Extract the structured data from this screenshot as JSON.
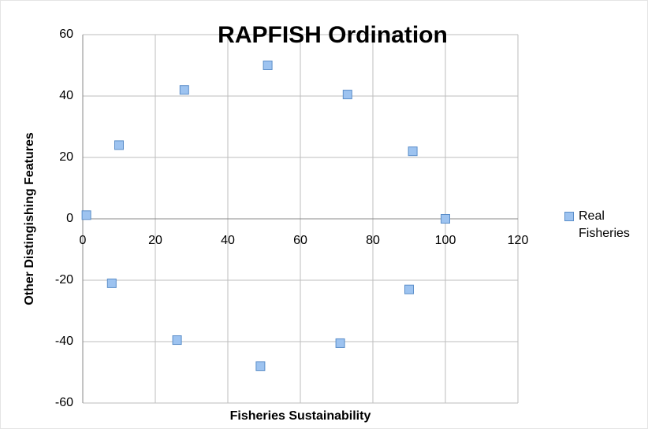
{
  "chart_data": {
    "type": "scatter",
    "title": "RAPFISH Ordination",
    "x_label": "Fisheries Sustainability",
    "y_label": "Other Distingishing Features",
    "series": [
      {
        "name": "Real Fisheries",
        "color": "#9dc3f0",
        "x": [
          1,
          10,
          28,
          51,
          73,
          91,
          100,
          90,
          71,
          49,
          26,
          8
        ],
        "values": [
          1.2,
          24,
          42,
          50,
          40.5,
          22,
          0,
          -23,
          -40.5,
          -48,
          -39.5,
          -21
        ]
      }
    ],
    "xlim": [
      0,
      120
    ],
    "xticks": [
      0,
      20,
      40,
      60,
      80,
      100,
      120
    ],
    "ylim": [
      -60,
      60
    ],
    "yticks": [
      -60,
      -40,
      -20,
      0,
      20,
      40,
      60
    ],
    "grid": true,
    "legend": "right"
  }
}
